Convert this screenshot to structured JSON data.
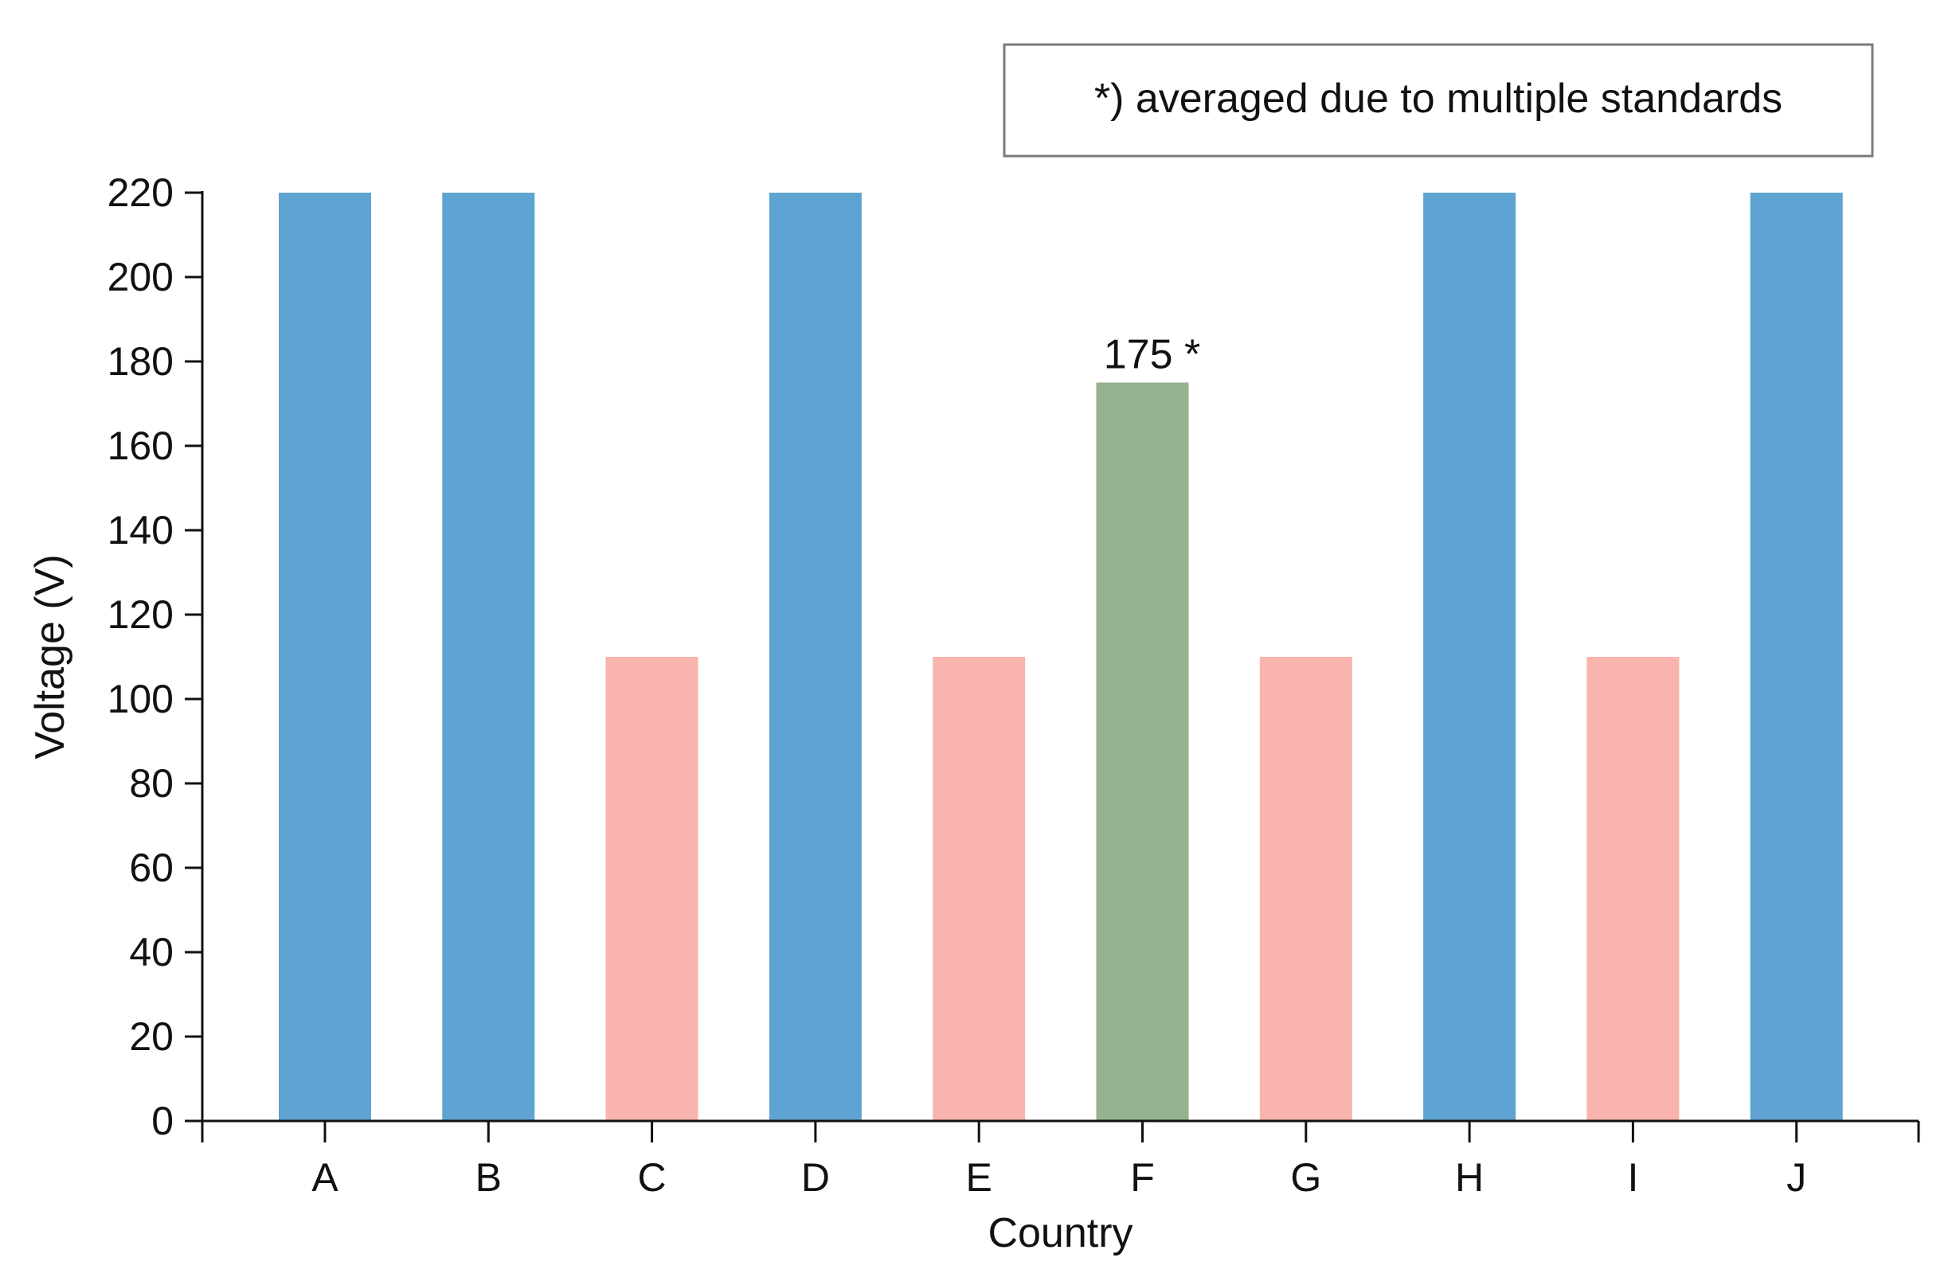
{
  "chart_data": {
    "type": "bar",
    "title": "",
    "xlabel": "Country",
    "ylabel": "Voltage (V)",
    "categories": [
      "A",
      "B",
      "C",
      "D",
      "E",
      "F",
      "G",
      "H",
      "I",
      "J"
    ],
    "values": [
      220,
      220,
      110,
      220,
      110,
      175,
      110,
      220,
      110,
      220
    ],
    "bar_colors": [
      "#5ea3d1",
      "#5ea3d1",
      "#f9b4ae",
      "#5ea3d1",
      "#f9b4ae",
      "#95b38e",
      "#f9b4ae",
      "#5ea3d1",
      "#f9b4ae",
      "#5ea3d1"
    ],
    "ylim": [
      0,
      220
    ],
    "yticks": [
      "0",
      "20",
      "40",
      "60",
      "80",
      "100",
      "120",
      "140",
      "160",
      "180",
      "200",
      "220"
    ],
    "grid": false,
    "data_labels": [
      {
        "category": "F",
        "text": "175 *"
      }
    ],
    "annotation": "*) averaged due to multiple standards",
    "annotation_placement": "top-right"
  }
}
